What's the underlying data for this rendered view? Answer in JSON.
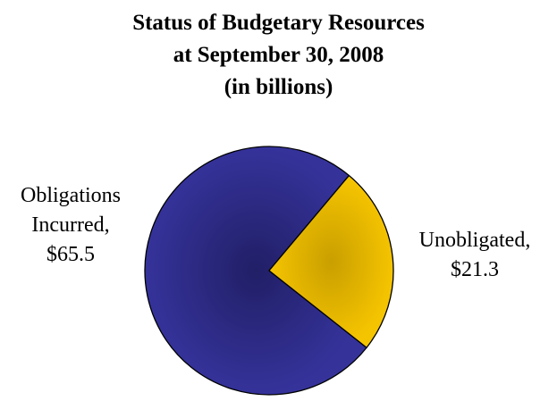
{
  "chart_data": {
    "type": "pie",
    "title_lines": [
      "Status of Budgetary Resources",
      "at September 30, 2008",
      "(in billions)"
    ],
    "slices": [
      {
        "label_lines": [
          "Obligations",
          "Incurred,",
          "$65.5"
        ],
        "value": 65.5,
        "color": "#35339a",
        "color_dark": "#211f66"
      },
      {
        "label_lines": [
          "Unobligated,",
          "$21.3"
        ],
        "value": 21.3,
        "color": "#f5c400",
        "color_dark": "#c99f00"
      }
    ]
  }
}
